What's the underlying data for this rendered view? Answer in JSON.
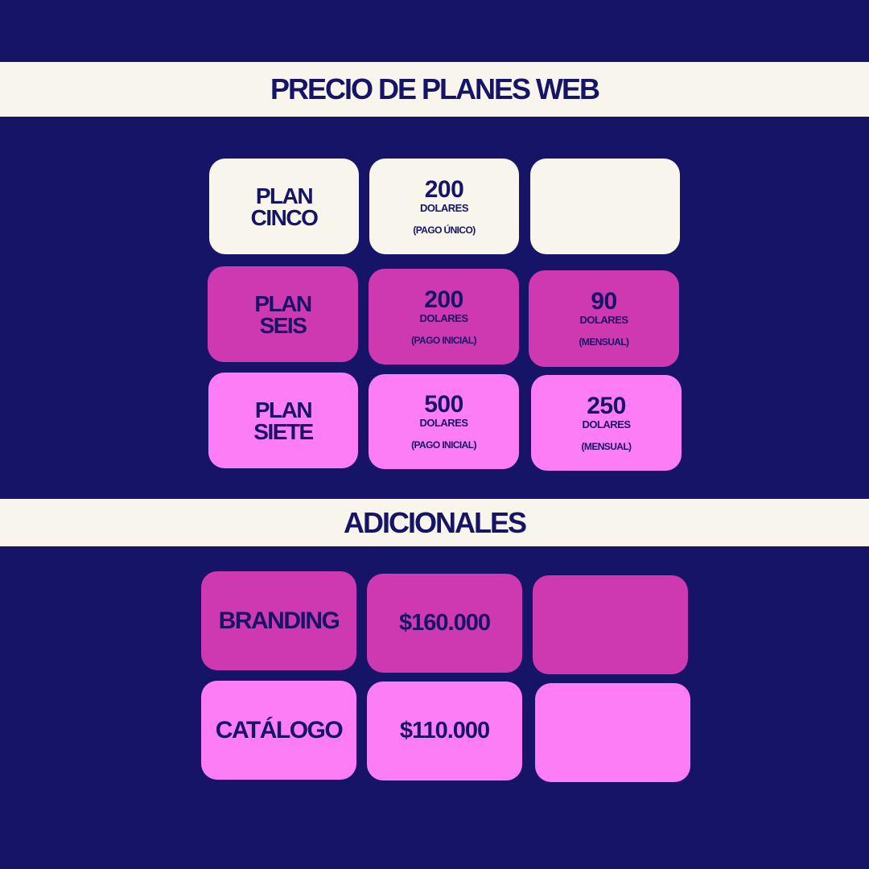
{
  "header": {
    "title": "PRECIO DE PLANES WEB"
  },
  "plans": [
    {
      "name_line1": "PLAN",
      "name_line2": "CINCO",
      "price": {
        "amount": "200",
        "unit": "DOLARES",
        "note": "(PAGO ÚNICO)"
      },
      "extra": null
    },
    {
      "name_line1": "PLAN",
      "name_line2": "SEIS",
      "price": {
        "amount": "200",
        "unit": "DOLARES",
        "note": "(PAGO INICIAL)"
      },
      "extra": {
        "amount": "90",
        "unit": "DOLARES",
        "note": "(MENSUAL)"
      }
    },
    {
      "name_line1": "PLAN",
      "name_line2": "SIETE",
      "price": {
        "amount": "500",
        "unit": "DOLARES",
        "note": "(PAGO INICIAL)"
      },
      "extra": {
        "amount": "250",
        "unit": "DOLARES",
        "note": "(MENSUAL)"
      }
    }
  ],
  "additionals": {
    "title": "ADICIONALES",
    "items": [
      {
        "name": "BRANDING",
        "price": "$160.000"
      },
      {
        "name": "CATÁLOGO",
        "price": "$110.000"
      }
    ]
  },
  "colors": {
    "background": "#161466",
    "cream": "#f8f6ec",
    "magenta": "#ce38b1",
    "pink": "#fd7df6"
  }
}
